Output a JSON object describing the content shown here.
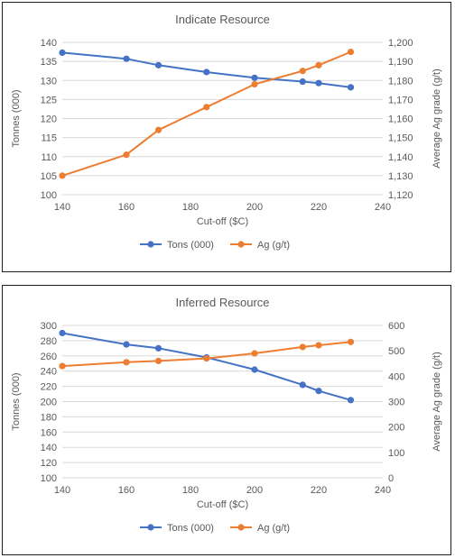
{
  "chart_data": [
    {
      "type": "line",
      "title": "Indicate Resource",
      "xlabel": "Cut-off ($C)",
      "ylabel": "Tonnes (000)",
      "y2label": "Average Ag grade (g/t)",
      "xlim": [
        140,
        240
      ],
      "xticks": [
        140,
        160,
        180,
        200,
        220,
        240
      ],
      "ylim": [
        100,
        140
      ],
      "yticks": [
        100,
        105,
        110,
        115,
        120,
        125,
        130,
        135,
        140
      ],
      "y2lim": [
        1120,
        1200
      ],
      "y2ticks": [
        1120,
        1130,
        1140,
        1150,
        1160,
        1170,
        1180,
        1190,
        1200
      ],
      "y2tick_labels": [
        "1,120",
        "1,130",
        "1,140",
        "1,150",
        "1,160",
        "1,170",
        "1,180",
        "1,190",
        "1,200"
      ],
      "grid": true,
      "legend": "bottom",
      "series": [
        {
          "name": "Tons (000)",
          "axis": "left",
          "color": "#4472C4",
          "x": [
            140,
            160,
            170,
            185,
            200,
            215,
            220,
            230
          ],
          "y": [
            137.3,
            135.7,
            134.0,
            132.2,
            130.7,
            129.7,
            129.3,
            128.2
          ]
        },
        {
          "name": "Ag (g/t)",
          "axis": "right",
          "color": "#ED7D31",
          "x": [
            140,
            160,
            170,
            185,
            200,
            215,
            220,
            230
          ],
          "y": [
            1130,
            1141,
            1154,
            1166,
            1178,
            1185,
            1188,
            1195
          ]
        }
      ]
    },
    {
      "type": "line",
      "title": "Inferred Resource",
      "xlabel": "Cut-off ($C)",
      "ylabel": "Tonnes (000)",
      "y2label": "Average Ag grade (g/t)",
      "xlim": [
        140,
        240
      ],
      "xticks": [
        140,
        160,
        180,
        200,
        220,
        240
      ],
      "ylim": [
        100,
        300
      ],
      "yticks": [
        100,
        120,
        140,
        160,
        180,
        200,
        220,
        240,
        260,
        280,
        300
      ],
      "y2lim": [
        0,
        600
      ],
      "y2ticks": [
        0,
        100,
        200,
        300,
        400,
        500,
        600
      ],
      "y2tick_labels": [
        "0",
        "100",
        "200",
        "300",
        "400",
        "500",
        "600"
      ],
      "grid": true,
      "legend": "bottom",
      "series": [
        {
          "name": "Tons (000)",
          "axis": "left",
          "color": "#4472C4",
          "x": [
            140,
            160,
            170,
            185,
            200,
            215,
            220,
            230
          ],
          "y": [
            290,
            275,
            270,
            258,
            242,
            222,
            214,
            202
          ]
        },
        {
          "name": "Ag (g/t)",
          "axis": "right",
          "color": "#ED7D31",
          "x": [
            140,
            160,
            170,
            185,
            200,
            215,
            220,
            230
          ],
          "y": [
            440,
            455,
            460,
            470,
            490,
            515,
            522,
            535
          ]
        }
      ]
    }
  ]
}
